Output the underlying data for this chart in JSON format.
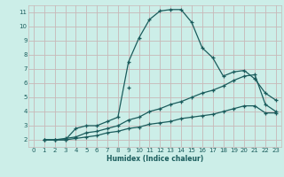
{
  "xlabel": "Humidex (Indice chaleur)",
  "bg_color": "#cceee8",
  "grid_color": "#c8b8b8",
  "line_color": "#1a5c5c",
  "xlim": [
    -0.5,
    23.5
  ],
  "ylim": [
    1.5,
    11.5
  ],
  "xticks": [
    0,
    1,
    2,
    3,
    4,
    5,
    6,
    7,
    8,
    9,
    10,
    11,
    12,
    13,
    14,
    15,
    16,
    17,
    18,
    19,
    20,
    21,
    22,
    23
  ],
  "yticks": [
    2,
    3,
    4,
    5,
    6,
    7,
    8,
    9,
    10,
    11
  ],
  "series1_x": [
    1,
    2,
    3,
    4,
    5,
    6,
    7,
    8,
    9,
    10,
    11,
    12,
    13,
    14,
    15,
    16,
    17,
    18,
    19,
    20,
    21,
    22,
    23
  ],
  "series1_y": [
    2,
    2,
    2,
    2.8,
    3.0,
    3.0,
    3.3,
    3.6,
    7.5,
    9.2,
    10.5,
    11.1,
    11.2,
    11.2,
    10.3,
    8.5,
    7.8,
    6.5,
    6.8,
    6.9,
    6.3,
    5.3,
    4.8
  ],
  "series2_x": [
    1,
    2,
    3,
    4,
    5,
    6,
    7,
    8,
    9,
    10,
    11,
    12,
    13,
    14,
    15,
    16,
    17,
    18,
    19,
    20,
    21,
    22,
    23
  ],
  "series2_y": [
    2,
    2,
    2.1,
    2.2,
    2.5,
    2.6,
    2.8,
    3.0,
    3.4,
    3.6,
    4.0,
    4.2,
    4.5,
    4.7,
    5.0,
    5.3,
    5.5,
    5.8,
    6.2,
    6.5,
    6.6,
    4.5,
    4.0
  ],
  "series3_x": [
    1,
    2,
    3,
    4,
    5,
    6,
    7,
    8,
    9,
    10,
    11,
    12,
    13,
    14,
    15,
    16,
    17,
    18,
    19,
    20,
    21,
    22,
    23
  ],
  "series3_y": [
    2,
    2,
    2.0,
    2.1,
    2.2,
    2.3,
    2.5,
    2.6,
    2.8,
    2.9,
    3.1,
    3.2,
    3.3,
    3.5,
    3.6,
    3.7,
    3.8,
    4.0,
    4.2,
    4.4,
    4.4,
    3.9,
    3.9
  ],
  "solo_x": [
    9
  ],
  "solo_y": [
    5.7
  ]
}
